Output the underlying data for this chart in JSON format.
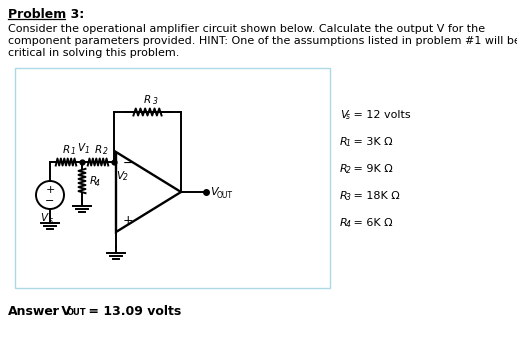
{
  "title": "Problem 3:",
  "body_text_line1": "Consider the operational amplifier circuit shown below. Calculate the output V for the",
  "body_text_line2": "component parameters provided. HINT: One of the assumptions listed in problem #1 will be",
  "body_text_line3": "critical in solving this problem.",
  "params_left": [
    "V",
    "R",
    "R",
    "R",
    "R"
  ],
  "params_sub": [
    "s",
    "1",
    "2",
    "3",
    "4"
  ],
  "params_right": [
    " = 12 volts",
    " = 3K Ω",
    " = 9K Ω",
    " = 18K Ω",
    " = 6K Ω"
  ],
  "bg_color": "#ffffff",
  "box_color": "#add8e6",
  "text_color": "#000000",
  "lw": 1.4
}
